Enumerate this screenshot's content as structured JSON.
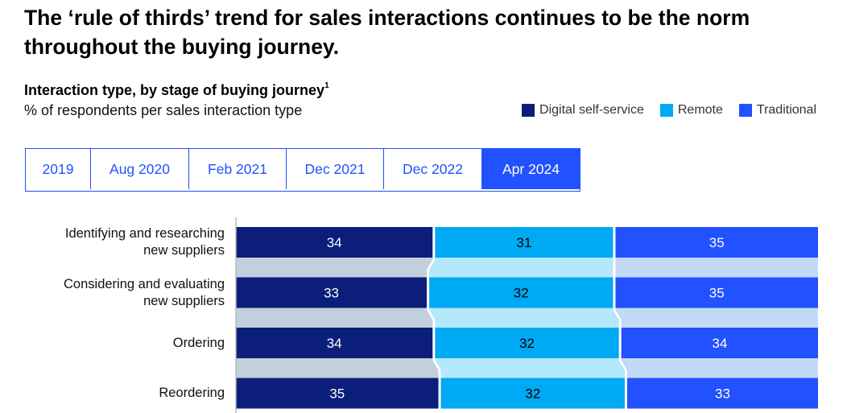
{
  "headline": "The ‘rule of thirds’ trend for sales interactions continues to be the norm throughout the buying journey.",
  "subtitle": "Interaction type, by stage of buying journey",
  "subtitle_footnote": "1",
  "unit_label": "% of respondents per sales interaction type",
  "tabs": [
    {
      "label": "2019",
      "active": false
    },
    {
      "label": "Aug 2020",
      "active": false
    },
    {
      "label": "Feb 2021",
      "active": false
    },
    {
      "label": "Dec 2021",
      "active": false
    },
    {
      "label": "Dec 2022",
      "active": false
    },
    {
      "label": "Apr 2024",
      "active": true
    }
  ],
  "colors": {
    "digital": "#0b1e7a",
    "remote": "#00a9f4",
    "traditional": "#2251ff",
    "digital_band": "#c3cfdc",
    "remote_band": "#b4e8fb",
    "traditional_band": "#c2d9f8",
    "axis": "#bbbbbb",
    "tab_accent": "#2251ff"
  },
  "chart_data": {
    "type": "bar",
    "stacked": true,
    "orientation": "horizontal",
    "categories": [
      [
        "Identifying and researching",
        "new suppliers"
      ],
      [
        "Considering and evaluating",
        "new suppliers"
      ],
      [
        "Ordering"
      ],
      [
        "Reordering"
      ]
    ],
    "series": [
      {
        "name": "Digital self-service",
        "values": [
          34,
          33,
          34,
          35
        ]
      },
      {
        "name": "Remote",
        "values": [
          31,
          32,
          32,
          32
        ]
      },
      {
        "name": "Traditional",
        "values": [
          35,
          35,
          34,
          33
        ]
      }
    ],
    "xlim": [
      0,
      100
    ],
    "legend_position": "top-right",
    "grid": false
  }
}
